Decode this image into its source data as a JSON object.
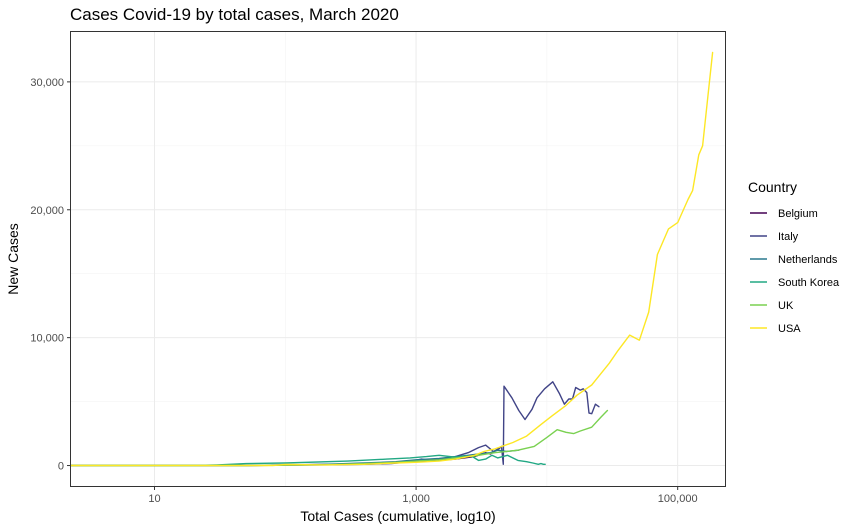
{
  "chart_data": {
    "type": "line",
    "title": "Cases Covid-19 by total cases, March 2020",
    "xlabel": "Total Cases (cumulative, log10)",
    "ylabel": "New Cases",
    "x_scale": "log10",
    "xlim": [
      2.3,
      230000
    ],
    "ylim": [
      -1600,
      33900
    ],
    "x_ticks": [
      10,
      1000,
      100000
    ],
    "x_tick_labels": [
      "10",
      "1,000",
      "100,000"
    ],
    "y_ticks": [
      0,
      10000,
      20000,
      30000
    ],
    "y_tick_labels": [
      "0",
      "10,000",
      "20,000",
      "30,000"
    ],
    "grid": true,
    "legend": {
      "title": "Country",
      "position": "right"
    },
    "series": [
      {
        "name": "Belgium",
        "color": "#440154",
        "points": [
          [
            2.3,
            0
          ],
          [
            50,
            0
          ],
          [
            100,
            40
          ],
          [
            200,
            80
          ],
          [
            400,
            150
          ],
          [
            700,
            250
          ],
          [
            1000,
            350
          ],
          [
            1500,
            400
          ],
          [
            2000,
            500
          ],
          [
            2800,
            700
          ],
          [
            3400,
            1000
          ],
          [
            3700,
            900
          ],
          [
            4100,
            1200
          ],
          [
            4400,
            1400
          ]
        ]
      },
      {
        "name": "Italy",
        "color": "#414487",
        "points": [
          [
            2.3,
            0
          ],
          [
            50,
            0
          ],
          [
            100,
            30
          ],
          [
            200,
            60
          ],
          [
            400,
            100
          ],
          [
            650,
            150
          ],
          [
            900,
            300
          ],
          [
            1100,
            500
          ],
          [
            1300,
            400
          ],
          [
            1700,
            600
          ],
          [
            2000,
            700
          ],
          [
            2500,
            1000
          ],
          [
            3000,
            1400
          ],
          [
            3400,
            1600
          ],
          [
            3900,
            1100
          ],
          [
            4300,
            1300
          ],
          [
            4500,
            1500
          ],
          [
            4640,
            100
          ],
          [
            4700,
            6200
          ],
          [
            5400,
            5300
          ],
          [
            6100,
            4300
          ],
          [
            6800,
            3600
          ],
          [
            7700,
            4400
          ],
          [
            8400,
            5300
          ],
          [
            9600,
            6000
          ],
          [
            11100,
            6550
          ],
          [
            12500,
            5600
          ],
          [
            13600,
            4800
          ],
          [
            14700,
            5200
          ],
          [
            15700,
            5200
          ],
          [
            16600,
            6100
          ],
          [
            18000,
            5900
          ],
          [
            19000,
            6000
          ],
          [
            20200,
            5700
          ],
          [
            21000,
            4100
          ],
          [
            22000,
            4050
          ],
          [
            23500,
            4800
          ],
          [
            25000,
            4600
          ]
        ]
      },
      {
        "name": "Netherlands",
        "color": "#2a788e",
        "points": [
          [
            2.3,
            0
          ],
          [
            50,
            0
          ],
          [
            100,
            50
          ],
          [
            200,
            100
          ],
          [
            400,
            200
          ],
          [
            700,
            300
          ],
          [
            1000,
            450
          ],
          [
            1500,
            550
          ],
          [
            2000,
            700
          ],
          [
            2500,
            800
          ],
          [
            3000,
            900
          ],
          [
            3700,
            1000
          ],
          [
            4200,
            1200
          ],
          [
            4900,
            1100
          ],
          [
            5500,
            1150
          ],
          [
            6100,
            1200
          ]
        ]
      },
      {
        "name": "South Korea",
        "color": "#22a884",
        "points": [
          [
            2.3,
            0
          ],
          [
            20,
            0
          ],
          [
            30,
            50
          ],
          [
            50,
            150
          ],
          [
            100,
            200
          ],
          [
            300,
            350
          ],
          [
            600,
            500
          ],
          [
            900,
            600
          ],
          [
            1200,
            700
          ],
          [
            1500,
            800
          ],
          [
            2000,
            650
          ],
          [
            2400,
            750
          ],
          [
            2700,
            700
          ],
          [
            3000,
            400
          ],
          [
            3400,
            500
          ],
          [
            3800,
            800
          ],
          [
            4200,
            600
          ],
          [
            5000,
            800
          ],
          [
            6000,
            400
          ],
          [
            7000,
            300
          ],
          [
            7800,
            200
          ],
          [
            8600,
            100
          ],
          [
            9000,
            150
          ],
          [
            9400,
            100
          ],
          [
            9700,
            100
          ]
        ]
      },
      {
        "name": "UK",
        "color": "#7ad151",
        "points": [
          [
            2.3,
            0
          ],
          [
            50,
            0
          ],
          [
            100,
            30
          ],
          [
            200,
            60
          ],
          [
            400,
            150
          ],
          [
            700,
            250
          ],
          [
            1000,
            350
          ],
          [
            1500,
            450
          ],
          [
            2000,
            600
          ],
          [
            2800,
            750
          ],
          [
            4000,
            1000
          ],
          [
            6000,
            1200
          ],
          [
            8000,
            1500
          ],
          [
            10000,
            2200
          ],
          [
            12000,
            2800
          ],
          [
            14000,
            2600
          ],
          [
            16000,
            2500
          ],
          [
            18000,
            2700
          ],
          [
            22000,
            3000
          ],
          [
            26000,
            3800
          ],
          [
            29000,
            4300
          ]
        ]
      },
      {
        "name": "USA",
        "color": "#fde725",
        "points": [
          [
            2.3,
            0
          ],
          [
            80,
            0
          ],
          [
            100,
            80
          ],
          [
            200,
            50
          ],
          [
            400,
            100
          ],
          [
            700,
            200
          ],
          [
            1000,
            250
          ],
          [
            1500,
            350
          ],
          [
            2000,
            500
          ],
          [
            2800,
            800
          ],
          [
            3300,
            1100
          ],
          [
            4000,
            1300
          ],
          [
            5500,
            1800
          ],
          [
            7000,
            2300
          ],
          [
            9000,
            3200
          ],
          [
            11000,
            3900
          ],
          [
            14000,
            4700
          ],
          [
            17000,
            5500
          ],
          [
            22000,
            6300
          ],
          [
            30000,
            8000
          ],
          [
            35000,
            9000
          ],
          [
            43000,
            10200
          ],
          [
            51000,
            9800
          ],
          [
            60000,
            12000
          ],
          [
            70000,
            16500
          ],
          [
            85000,
            18500
          ],
          [
            100000,
            19000
          ],
          [
            120000,
            20800
          ],
          [
            130000,
            21500
          ],
          [
            145000,
            24300
          ],
          [
            155000,
            25000
          ],
          [
            170000,
            28800
          ],
          [
            185000,
            32300
          ]
        ]
      }
    ]
  }
}
